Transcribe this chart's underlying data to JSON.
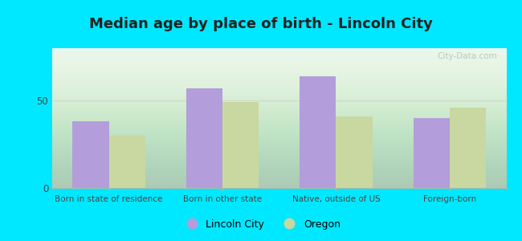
{
  "title": "Median age by place of birth - Lincoln City",
  "categories": [
    "Born in state of residence",
    "Born in other state",
    "Native, outside of US",
    "Foreign-born"
  ],
  "lincoln_city": [
    38,
    57,
    64,
    40
  ],
  "oregon": [
    30,
    49,
    41,
    46
  ],
  "lincoln_city_color": "#b39ddb",
  "oregon_color": "#c8d8a0",
  "bar_width": 0.32,
  "ylim": [
    0,
    80
  ],
  "yticks": [
    0,
    50
  ],
  "background_outer": "#00e8ff",
  "grid_color": "#d0d8c8",
  "title_fontsize": 13,
  "legend_label_lincoln": "Lincoln City",
  "legend_label_oregon": "Oregon",
  "watermark": "City-Data.com",
  "title_color": "#222222",
  "tick_color": "#444444",
  "spine_color": "#b0b8a8"
}
